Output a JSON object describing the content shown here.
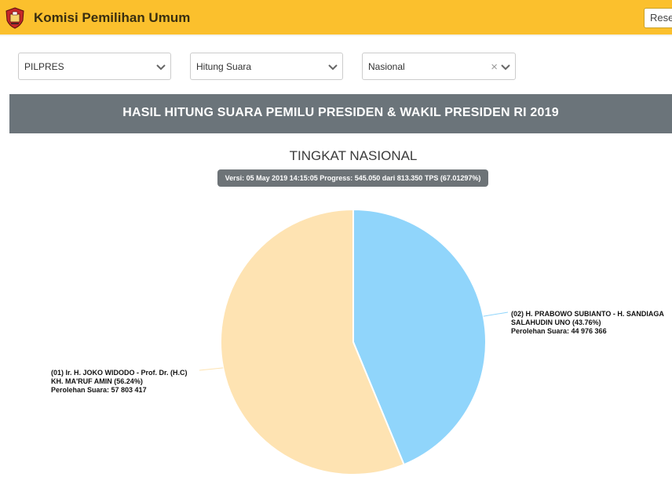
{
  "app": {
    "title": "Komisi Pemilihan Umum",
    "reset_label": "Reset"
  },
  "filters": {
    "election": "PILPRES",
    "mode": "Hitung Suara",
    "region": "Nasional"
  },
  "banner": {
    "title": "HASIL HITUNG SUARA PEMILU PRESIDEN & WAKIL PRESIDEN RI 2019"
  },
  "chart_data": {
    "type": "pie",
    "title": "TINGKAT NASIONAL",
    "subtitle": "Versi: 05 May 2019 14:15:05 Progress: 545.050 dari 813.350 TPS (67.01297%)",
    "slices": [
      {
        "label_lines": [
          "(02) H. PRABOWO SUBIANTO - H. SANDIAGA",
          "SALAHUDIN UNO (43.76%)",
          "Perolehan Suara: 44 976 366"
        ],
        "percent": 43.76,
        "votes": 44976366,
        "color": "#90d5fb"
      },
      {
        "label_lines": [
          "(01) Ir. H. JOKO WIDODO - Prof. Dr. (H.C)",
          "KH. MA'RUF AMIN (56.24%)",
          "Perolehan Suara: 57 803 417"
        ],
        "percent": 56.24,
        "votes": 57803417,
        "color": "#fee3b2"
      }
    ],
    "legend": false
  }
}
